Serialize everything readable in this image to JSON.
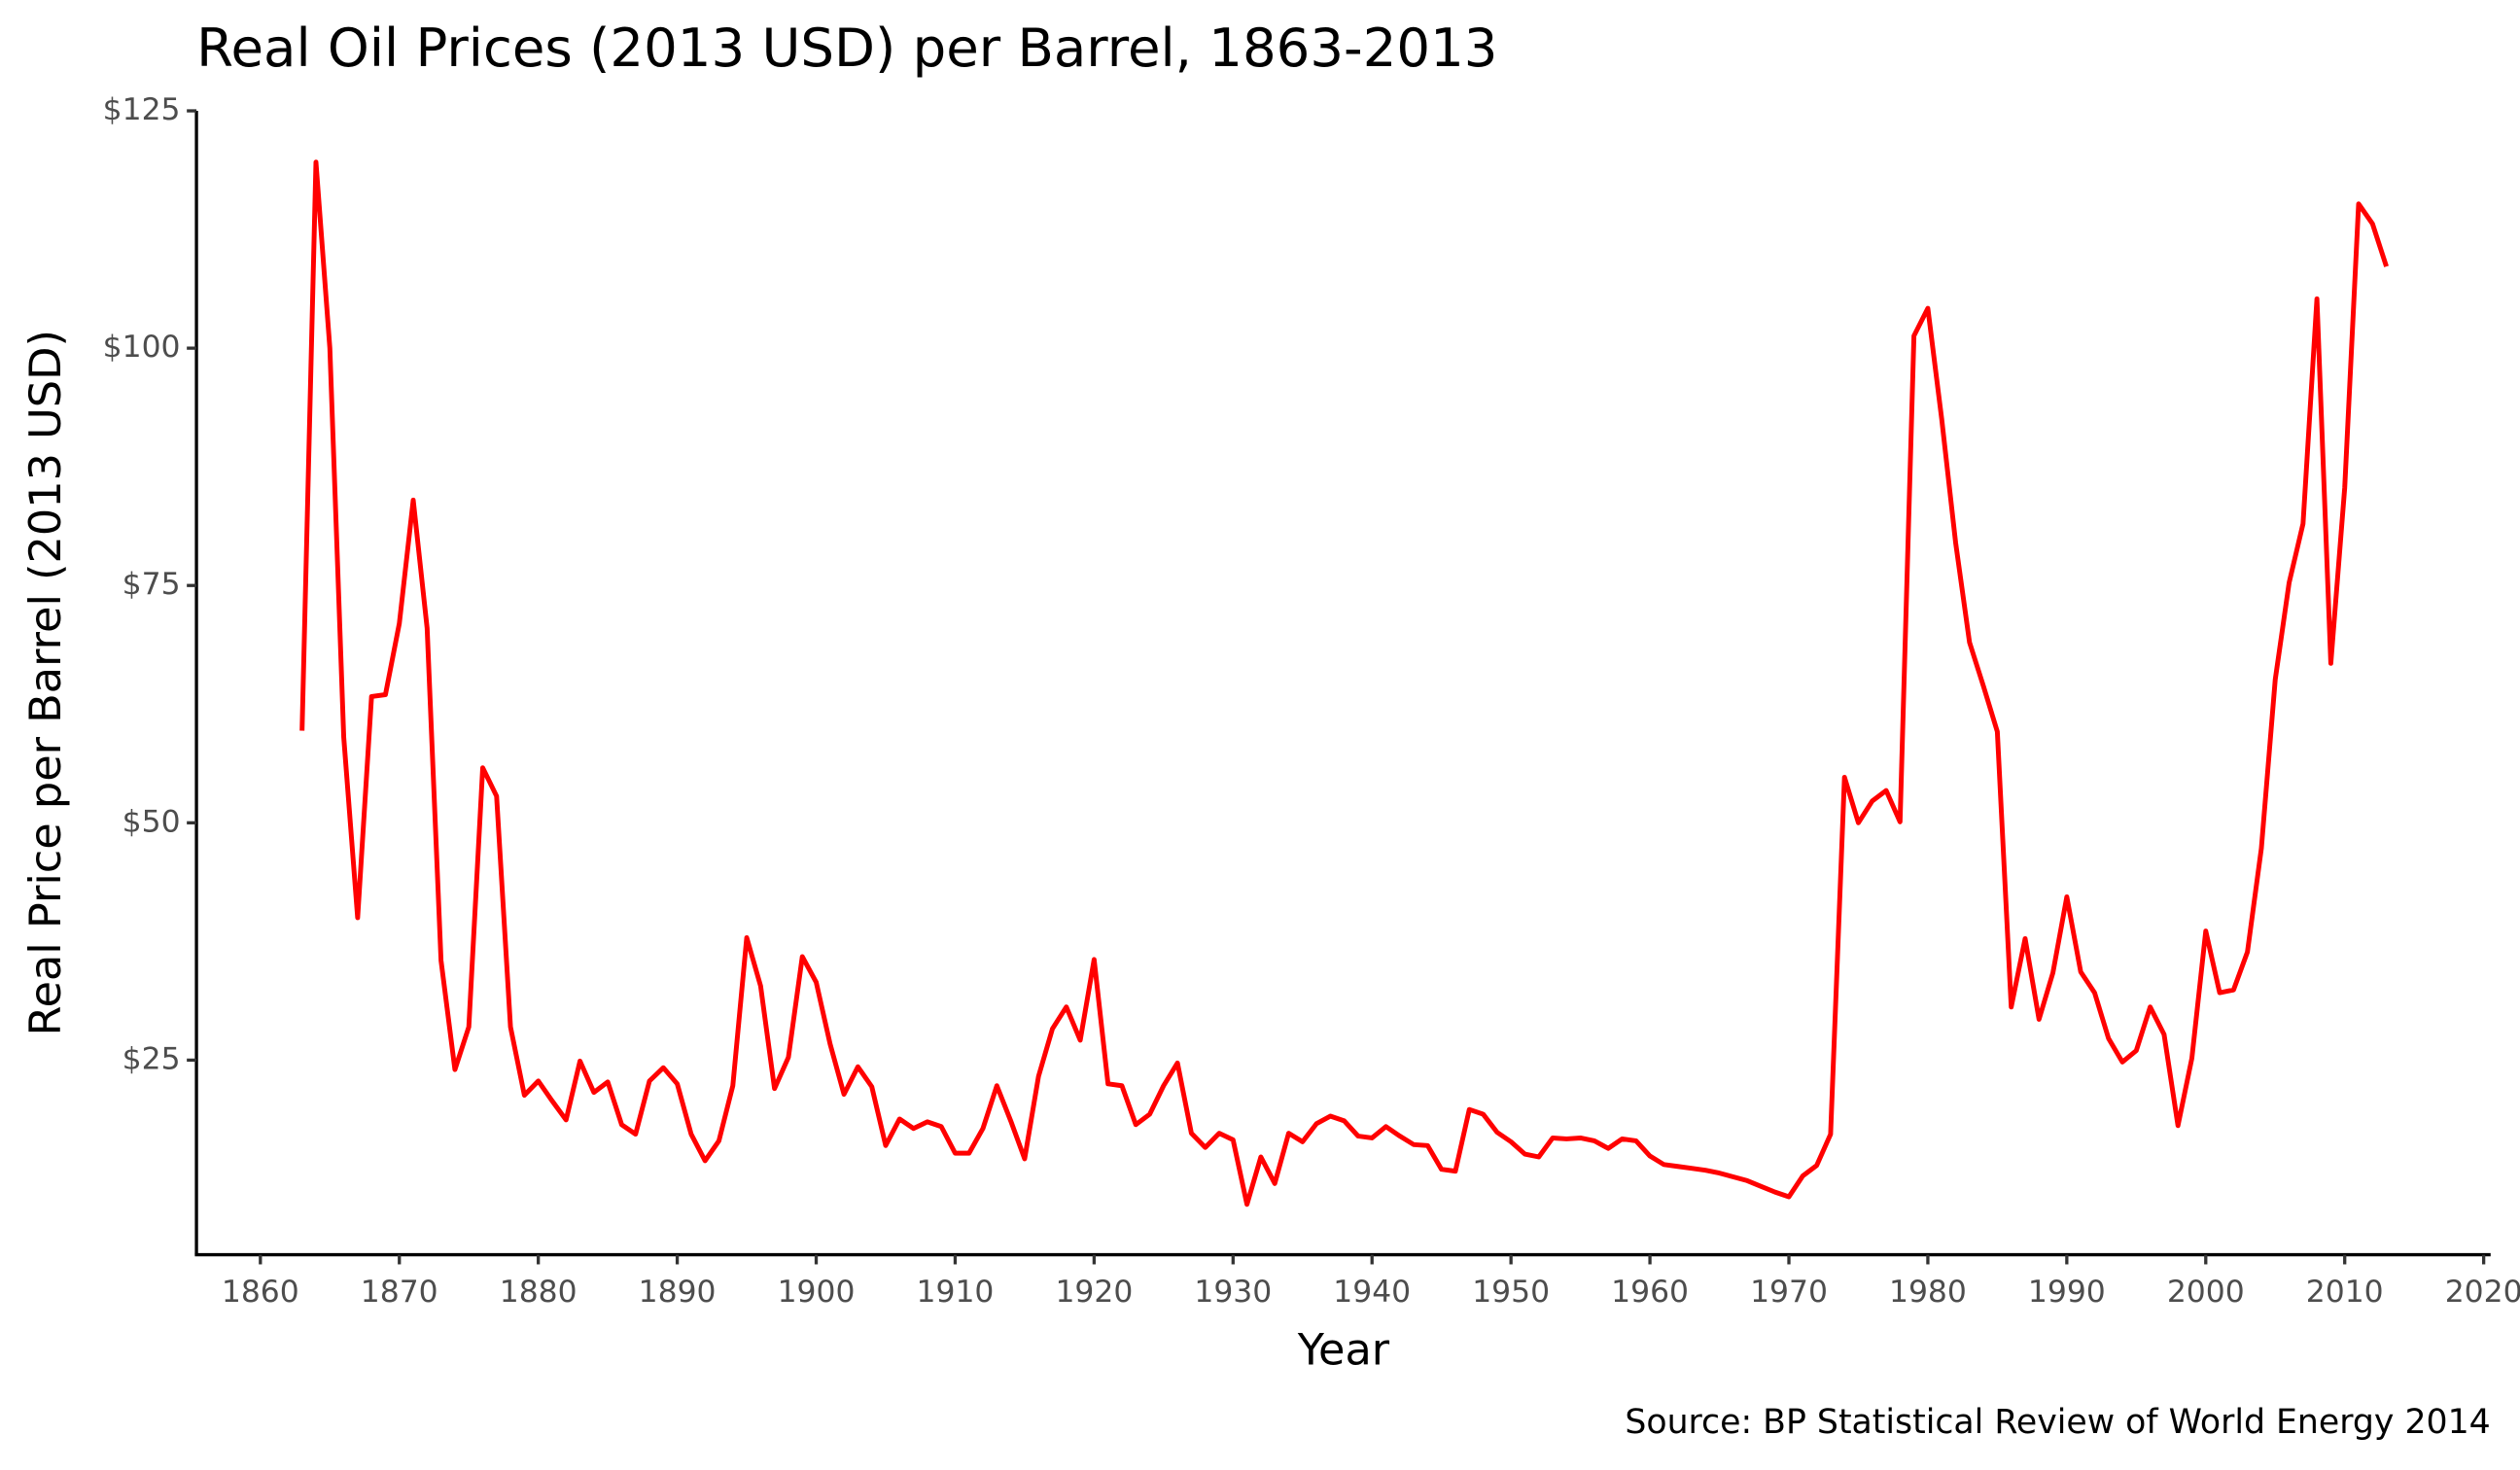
{
  "chart_data": {
    "type": "line",
    "title": "Real Oil Prices (2013 USD) per Barrel, 1863-2013",
    "x_label": "Year",
    "y_label": "Real Price per Barrel (2013 USD)",
    "caption": "Source: BP Statistical Review of World Energy 2014",
    "color": "#ff0000",
    "x": [
      1863,
      1864,
      1865,
      1866,
      1867,
      1868,
      1869,
      1870,
      1871,
      1872,
      1873,
      1874,
      1875,
      1876,
      1877,
      1878,
      1879,
      1880,
      1881,
      1882,
      1883,
      1884,
      1885,
      1886,
      1887,
      1888,
      1889,
      1890,
      1891,
      1892,
      1893,
      1894,
      1895,
      1896,
      1897,
      1898,
      1899,
      1900,
      1901,
      1902,
      1903,
      1904,
      1905,
      1906,
      1907,
      1908,
      1909,
      1910,
      1911,
      1912,
      1913,
      1914,
      1915,
      1916,
      1917,
      1918,
      1919,
      1920,
      1921,
      1922,
      1923,
      1924,
      1925,
      1926,
      1927,
      1928,
      1929,
      1930,
      1931,
      1932,
      1933,
      1934,
      1935,
      1936,
      1937,
      1938,
      1939,
      1940,
      1941,
      1942,
      1943,
      1944,
      1945,
      1946,
      1947,
      1948,
      1949,
      1950,
      1951,
      1952,
      1953,
      1954,
      1955,
      1956,
      1957,
      1958,
      1959,
      1960,
      1961,
      1962,
      1963,
      1964,
      1965,
      1966,
      1967,
      1968,
      1969,
      1970,
      1971,
      1972,
      1973,
      1974,
      1975,
      1976,
      1977,
      1978,
      1979,
      1980,
      1981,
      1982,
      1983,
      1984,
      1985,
      1986,
      1987,
      1988,
      1989,
      1990,
      1991,
      1992,
      1993,
      1994,
      1995,
      1996,
      1997,
      1998,
      1999,
      2000,
      2001,
      2002,
      2003,
      2004,
      2005,
      2006,
      2007,
      2008,
      2009,
      2010,
      2011,
      2012,
      2013
    ],
    "values": [
      59.7,
      119.6,
      100,
      59,
      40,
      63.3,
      63.5,
      71,
      84,
      70.5,
      35.5,
      24,
      28.5,
      55.8,
      52.8,
      28.5,
      21.3,
      22.8,
      20.7,
      18.7,
      24.9,
      21.6,
      22.7,
      18.2,
      17.2,
      22.8,
      24.2,
      22.5,
      17.2,
      14.4,
      16.5,
      22.3,
      37.9,
      32.8,
      22,
      25.3,
      35.9,
      33.2,
      26.7,
      21.4,
      24.3,
      22.2,
      16,
      18.8,
      17.8,
      18.5,
      18,
      15.2,
      15.2,
      17.8,
      22.3,
      18.6,
      14.6,
      23.3,
      28.3,
      30.6,
      27.1,
      35.6,
      22.5,
      22.3,
      18.2,
      19.3,
      22.3,
      24.7,
      17.3,
      15.8,
      17.3,
      16.6,
      9.8,
      14.8,
      12,
      17.3,
      16.4,
      18.3,
      19.1,
      18.6,
      17,
      16.8,
      18,
      17,
      16.1,
      16,
      13.5,
      13.3,
      19.8,
      19.3,
      17.4,
      16.4,
      15.1,
      14.8,
      16.8,
      16.7,
      16.8,
      16.5,
      15.7,
      16.7,
      16.5,
      14.9,
      14,
      13.8,
      13.6,
      13.4,
      13.1,
      12.7,
      12.3,
      11.7,
      11.1,
      10.6,
      12.8,
      13.9,
      17.2,
      54.8,
      50,
      52.3,
      53.4,
      50.1,
      101.3,
      104.2,
      92.5,
      79.5,
      69,
      64.4,
      59.6,
      30.6,
      37.8,
      29.3,
      34.2,
      42.2,
      34.3,
      32.1,
      27.3,
      24.8,
      26,
      30.6,
      27.7,
      18.1,
      25.2,
      38.6,
      32.1,
      32.4,
      36.4,
      47.3,
      65.1,
      75.3,
      81.5,
      105.2,
      66.8,
      85.3,
      115.2,
      113.1,
      108.6
    ],
    "xlim": [
      1855.4,
      2020.5
    ],
    "xticks": [
      1860,
      1870,
      1880,
      1890,
      1900,
      1910,
      1920,
      1930,
      1940,
      1950,
      1960,
      1970,
      1980,
      1990,
      2000,
      2010,
      2020
    ],
    "ylim": [
      4.5,
      125
    ],
    "yticks": [
      {
        "value": 25,
        "label": "$25"
      },
      {
        "value": 50,
        "label": "$50"
      },
      {
        "value": 75,
        "label": "$75"
      },
      {
        "value": 100,
        "label": "$100"
      },
      {
        "value": 125,
        "label": "$125"
      }
    ],
    "grid": false
  }
}
